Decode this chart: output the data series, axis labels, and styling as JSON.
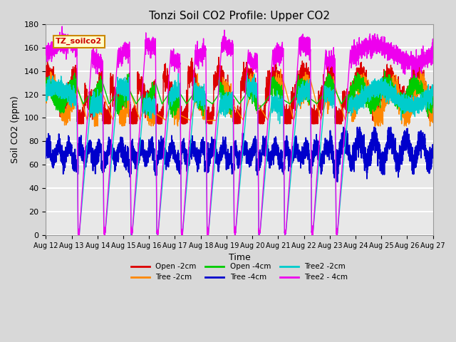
{
  "title": "Tonzi Soil CO2 Profile: Upper CO2",
  "xlabel": "Time",
  "ylabel": "Soil CO2 (ppm)",
  "ylim": [
    0,
    180
  ],
  "label_box": "TZ_soilco2",
  "legend": [
    "Open -2cm",
    "Tree -2cm",
    "Open -4cm",
    "Tree -4cm",
    "Tree2 -2cm",
    "Tree2 - 4cm"
  ],
  "colors": [
    "#dd0000",
    "#ff8800",
    "#00cc00",
    "#0000cc",
    "#00cccc",
    "#ee00ee"
  ],
  "bg_color": "#d8d8d8",
  "plot_bg": "#e8e8e8",
  "grid_color": "#ffffff",
  "start_day": 12,
  "end_day": 27
}
